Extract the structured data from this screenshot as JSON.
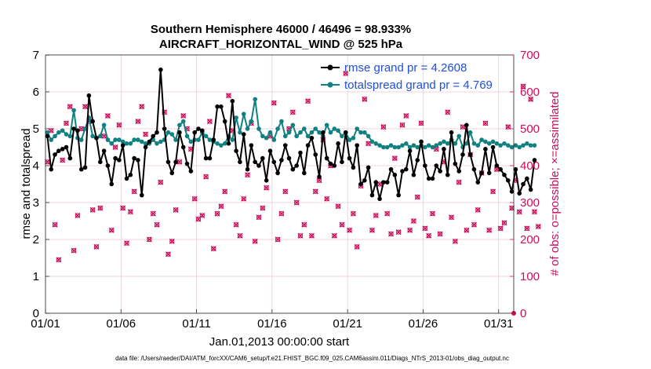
{
  "colors": {
    "rmse": "#000000",
    "spread": "#118080",
    "obs": "#cc0e5b",
    "legend_text": "#1f4fe0",
    "grid": "#e7c9d3"
  },
  "chart_data": {
    "type": "line",
    "title_line1": "Southern Hemisphere 46000 / 46496 = 98.933%",
    "title_line2": "AIRCRAFT_HORIZONTAL_WIND @ 525 hPa",
    "xlabel": "Jan.01,2013 00:00:00 start",
    "ylabel": "rmse and totalspread",
    "ylabel_right": "# of obs: o=possible; ×=assimilated",
    "xlim": [
      0,
      31
    ],
    "ylim": [
      0,
      7
    ],
    "ylim_right": [
      0,
      700
    ],
    "x_ticks": [
      0,
      5,
      10,
      15,
      20,
      25,
      30
    ],
    "x_tick_labels": [
      "01/01",
      "01/06",
      "01/11",
      "01/16",
      "01/21",
      "01/26",
      "01/31"
    ],
    "y_ticks": [
      0,
      1,
      2,
      3,
      4,
      5,
      6,
      7
    ],
    "y_tick_labels": [
      "0",
      "1",
      "2",
      "3",
      "4",
      "5",
      "6",
      "7"
    ],
    "y_right_ticks": [
      0,
      100,
      200,
      300,
      400,
      500,
      600,
      700
    ],
    "y_right_tick_labels": [
      "0",
      "100",
      "200",
      "300",
      "400",
      "500",
      "600",
      "700"
    ],
    "x_step_days": 0.25,
    "legend": [
      {
        "name": "rmse grand pr = 4.2608",
        "series": "rmse"
      },
      {
        "name": "totalspread grand pr = 4.769",
        "series": "totalspread"
      }
    ],
    "series": [
      {
        "name": "rmse",
        "values": [
          4.8,
          3.9,
          4.3,
          4.4,
          4.45,
          4.5,
          4.2,
          5.0,
          4.95,
          3.9,
          3.95,
          5.9,
          5.2,
          4.75,
          4.1,
          4.4,
          4.0,
          3.5,
          4.2,
          4.15,
          4.55,
          3.65,
          3.75,
          4.2,
          4.15,
          3.2,
          4.5,
          4.65,
          4.8,
          4.9,
          6.6,
          5.0,
          4.1,
          3.8,
          4.1,
          4.9,
          4.5,
          4.05,
          3.85,
          4.9,
          5.0,
          4.95,
          4.2,
          4.2,
          4.7,
          5.6,
          5.6,
          5.2,
          4.6,
          5.75,
          4.4,
          4.1,
          4.85,
          3.9,
          4.55,
          4.1,
          4.0,
          4.2,
          3.6,
          4.4,
          4.1,
          3.8,
          4.15,
          4.55,
          4.2,
          3.9,
          4.0,
          4.35,
          3.8,
          4.55,
          4.75,
          4.3,
          3.7,
          4.9,
          4.2,
          4.05,
          4.0,
          4.6,
          4.1,
          4.9,
          4.2,
          3.95,
          4.55,
          3.5,
          3.6,
          3.95,
          3.2,
          3.55,
          3.1,
          3.55,
          3.55,
          3.9,
          3.75,
          3.2,
          3.85,
          3.9,
          4.4,
          3.75,
          4.15,
          4.65,
          4.0,
          3.65,
          3.65,
          4.0,
          3.85,
          4.45,
          3.75,
          4.9,
          4.05,
          3.85,
          4.3,
          5.1,
          4.3,
          3.9,
          3.55,
          3.8,
          4.45,
          3.8,
          4.5,
          4.0,
          3.9,
          3.75,
          3.6,
          3.3,
          3.9,
          3.25,
          3.5,
          3.65,
          3.35,
          4.15
        ]
      },
      {
        "name": "totalspread",
        "values": [
          4.9,
          4.7,
          4.8,
          4.9,
          4.95,
          4.85,
          4.8,
          5.5,
          4.75,
          4.7,
          5.0,
          5.3,
          4.8,
          4.75,
          4.8,
          5.1,
          4.7,
          4.6,
          4.7,
          4.7,
          4.65,
          4.6,
          4.6,
          4.7,
          4.7,
          4.65,
          4.6,
          4.6,
          4.7,
          4.6,
          4.65,
          4.7,
          4.9,
          4.85,
          4.7,
          5.1,
          5.2,
          4.8,
          4.65,
          4.7,
          4.7,
          4.9,
          4.8,
          4.7,
          4.65,
          4.6,
          4.55,
          4.6,
          4.8,
          4.7,
          5.3,
          4.9,
          5.4,
          5.0,
          5.2,
          5.8,
          5.0,
          4.8,
          4.75,
          4.9,
          4.7,
          5.0,
          5.2,
          4.8,
          4.9,
          5.1,
          4.8,
          4.9,
          5.0,
          4.8,
          4.9,
          5.0,
          4.9,
          4.8,
          5.1,
          4.9,
          5.0,
          4.95,
          4.8,
          4.9,
          4.7,
          4.75,
          5.0,
          4.9,
          4.9,
          4.8,
          4.65,
          4.6,
          4.55,
          4.5,
          4.5,
          4.55,
          4.5,
          4.5,
          4.55,
          4.6,
          4.5,
          4.55,
          4.5,
          4.55,
          4.5,
          4.55,
          4.5,
          4.55,
          4.6,
          4.65,
          4.6,
          4.7,
          4.6,
          4.8,
          4.5,
          4.6,
          4.9,
          4.6,
          4.55,
          4.7,
          4.65,
          4.6,
          4.65,
          4.6,
          4.55,
          4.6,
          4.55,
          4.5,
          4.55,
          4.5,
          4.55,
          4.6,
          4.55,
          4.55
        ]
      },
      {
        "name": "obs_possible_assimilated",
        "axis": "right",
        "values": [
          410,
          495,
          240,
          145,
          415,
          515,
          560,
          170,
          265,
          500,
          560,
          520,
          280,
          180,
          285,
          480,
          535,
          225,
          450,
          510,
          285,
          190,
          275,
          330,
          520,
          560,
          485,
          200,
          270,
          240,
          355,
          545,
          160,
          195,
          280,
          410,
          535,
          500,
          445,
          310,
          255,
          265,
          370,
          520,
          175,
          270,
          290,
          330,
          590,
          495,
          240,
          210,
          310,
          375,
          515,
          195,
          260,
          285,
          340,
          480,
          570,
          200,
          270,
          330,
          500,
          545,
          300,
          210,
          240,
          575,
          210,
          330,
          360,
          470,
          310,
          400,
          210,
          290,
          240,
          650,
          225,
          270,
          180,
          345,
          580,
          460,
          225,
          265,
          350,
          505,
          270,
          215,
          420,
          220,
          510,
          535,
          225,
          250,
          315,
          515,
          230,
          210,
          270,
          445,
          215,
          410,
          545,
          260,
          195,
          355,
          505,
          225,
          430,
          240,
          280,
          380,
          515,
          225,
          330,
          390,
          230,
          245,
          505,
          285,
          360,
          275,
          615,
          230,
          580,
          275,
          235
        ]
      }
    ]
  },
  "footer_text": "data file: /Users/raeder/DAI/ATM_forcXX/CAM6_setup/f.e21.FHIST_BGC.f09_025.CAM6assim.011/Diags_NTrS_2013-01/obs_diag_output.nc"
}
